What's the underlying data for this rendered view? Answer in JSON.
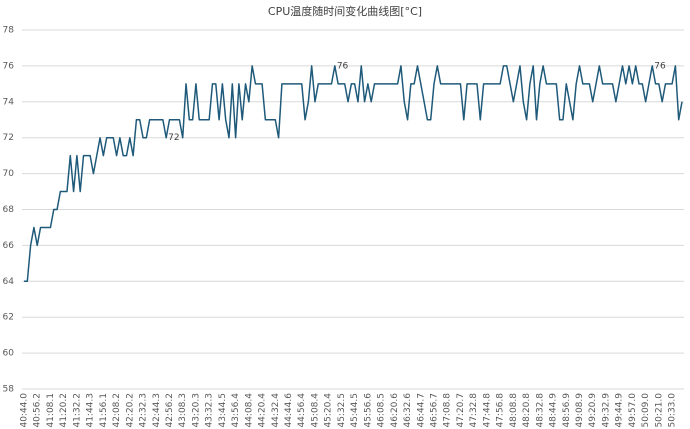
{
  "chart_data": {
    "type": "line",
    "title": "CPU温度随时间变化曲线图[°C]",
    "categories": [
      "40:44.0",
      null,
      null,
      null,
      "40:56.2",
      null,
      null,
      null,
      "41:08.1",
      null,
      null,
      null,
      "41:20.2",
      null,
      null,
      null,
      "41:32.2",
      null,
      null,
      null,
      "41:44.3",
      null,
      null,
      null,
      "41:56.1",
      null,
      null,
      null,
      "42:08.2",
      null,
      null,
      null,
      "42:20.2",
      null,
      null,
      null,
      "42:32.3",
      null,
      null,
      null,
      "42:44.3",
      null,
      null,
      null,
      "42:56.2",
      null,
      null,
      null,
      "43:08.3",
      null,
      null,
      null,
      "43:20.3",
      null,
      null,
      null,
      "43:32.3",
      null,
      null,
      null,
      "43:44.5",
      null,
      null,
      null,
      "43:56.4",
      null,
      null,
      null,
      "44:08.4",
      null,
      null,
      null,
      "44:20.4",
      null,
      null,
      null,
      "44:32.4",
      null,
      null,
      null,
      "44:44.6",
      null,
      null,
      null,
      "44:56.4",
      null,
      null,
      null,
      "45:08.4",
      null,
      null,
      null,
      "45:20.4",
      null,
      null,
      null,
      "45:32.5",
      null,
      null,
      null,
      "45:44.5",
      null,
      null,
      null,
      "45:56.6",
      null,
      null,
      null,
      "46:08.5",
      null,
      null,
      null,
      "46:20.6",
      null,
      null,
      null,
      "46:32.6",
      null,
      null,
      null,
      "46:44.7",
      null,
      null,
      null,
      "46:56.7",
      null,
      null,
      null,
      "47:08.8",
      null,
      null,
      null,
      "47:20.7",
      null,
      null,
      null,
      "47:32.8",
      null,
      null,
      null,
      "47:44.8",
      null,
      null,
      null,
      "47:56.8",
      null,
      null,
      null,
      "48:08.8",
      null,
      null,
      null,
      "48:20.8",
      null,
      null,
      null,
      "48:32.8",
      null,
      null,
      null,
      "48:44.9",
      null,
      null,
      null,
      "48:56.9",
      null,
      null,
      null,
      "49:08.9",
      null,
      null,
      null,
      "49:20.9",
      null,
      null,
      null,
      "49:32.9",
      null,
      null,
      null,
      "49:44.9",
      null,
      null,
      null,
      "49:57.0",
      null,
      null,
      null,
      "50:09.0",
      null,
      null,
      null,
      "50:21.0",
      null,
      null,
      null,
      "50:33.0",
      null,
      null,
      null
    ],
    "values": [
      64,
      64,
      66,
      67,
      66,
      67,
      67,
      67,
      67,
      68,
      68,
      69,
      69,
      69,
      71,
      69,
      71,
      69,
      71,
      71,
      71,
      70,
      71,
      72,
      71,
      72,
      72,
      72,
      71,
      72,
      71,
      71,
      72,
      71,
      73,
      73,
      72,
      72,
      73,
      73,
      73,
      73,
      73,
      72,
      73,
      73,
      73,
      73,
      72,
      75,
      73,
      73,
      75,
      73,
      73,
      73,
      73,
      75,
      75,
      73,
      75,
      73,
      72,
      75,
      72,
      75,
      73,
      75,
      74,
      76,
      75,
      75,
      75,
      73,
      73,
      73,
      73,
      72,
      75,
      75,
      75,
      75,
      75,
      75,
      75,
      73,
      74,
      76,
      74,
      75,
      75,
      75,
      75,
      75,
      76,
      75,
      75,
      75,
      74,
      75,
      75,
      74,
      76,
      74,
      75,
      74,
      75,
      75,
      75,
      75,
      75,
      75,
      75,
      75,
      76,
      74,
      73,
      75,
      75,
      76,
      75,
      74,
      73,
      73,
      75,
      76,
      75,
      75,
      75,
      75,
      75,
      75,
      75,
      73,
      75,
      75,
      75,
      75,
      73,
      75,
      75,
      75,
      75,
      75,
      75,
      76,
      76,
      75,
      74,
      75,
      76,
      74,
      73,
      75,
      76,
      73,
      75,
      76,
      75,
      75,
      75,
      75,
      73,
      73,
      75,
      74,
      73,
      75,
      76,
      75,
      75,
      75,
      74,
      75,
      76,
      75,
      75,
      75,
      75,
      74,
      75,
      76,
      75,
      76,
      75,
      76,
      75,
      75,
      74,
      75,
      76,
      75,
      75,
      74,
      75,
      75,
      75,
      76,
      73,
      74
    ],
    "labeled_indices": [
      43,
      94,
      190
    ],
    "color": "#1f5a7a",
    "ylim": [
      58,
      78
    ],
    "yticks": [
      58,
      60,
      62,
      64,
      66,
      68,
      70,
      72,
      74,
      76,
      78
    ],
    "grid": true
  }
}
